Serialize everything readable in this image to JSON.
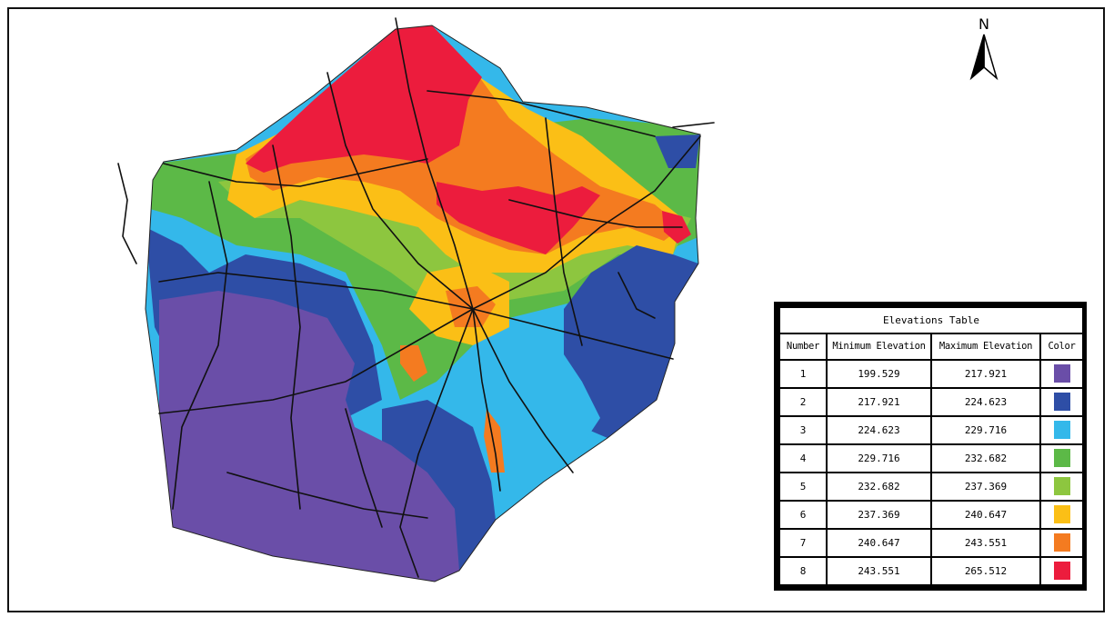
{
  "north_arrow": {
    "label": "N"
  },
  "legend": {
    "title": "Elevations Table",
    "headers": [
      "Number",
      "Minimum Elevation",
      "Maximum Elevation",
      "Color"
    ],
    "rows": [
      {
        "number": "1",
        "min": "199.529",
        "max": "217.921",
        "color": "#6a4ea8"
      },
      {
        "number": "2",
        "min": "217.921",
        "max": "224.623",
        "color": "#2e4ea6"
      },
      {
        "number": "3",
        "min": "224.623",
        "max": "229.716",
        "color": "#34b8ea"
      },
      {
        "number": "4",
        "min": "229.716",
        "max": "232.682",
        "color": "#5cb947"
      },
      {
        "number": "5",
        "min": "232.682",
        "max": "237.369",
        "color": "#8dc63f"
      },
      {
        "number": "6",
        "min": "237.369",
        "max": "240.647",
        "color": "#fbbf16"
      },
      {
        "number": "7",
        "min": "240.647",
        "max": "243.551",
        "color": "#f47b20"
      },
      {
        "number": "8",
        "min": "243.551",
        "max": "265.512",
        "color": "#ec1c3d"
      }
    ]
  }
}
